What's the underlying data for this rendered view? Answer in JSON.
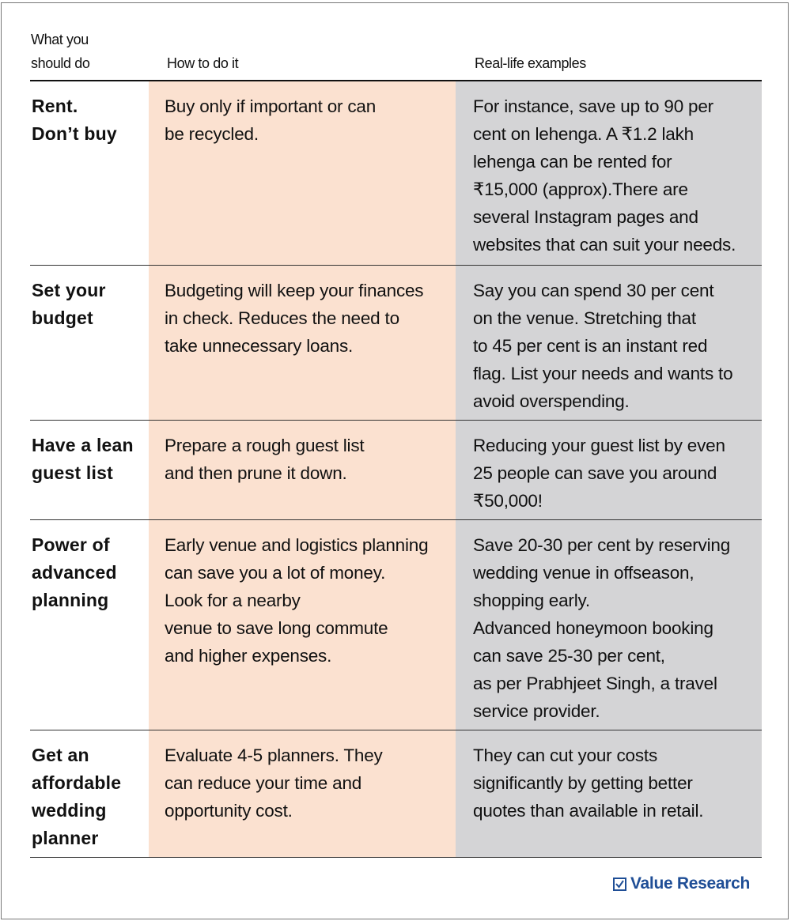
{
  "headers": {
    "col1": "What you\nshould do",
    "col2": "How to do it",
    "col3": "Real-life examples"
  },
  "rows": [
    {
      "what": "Rent.\nDon’t buy",
      "how": "Buy only if important or can\nbe recycled.",
      "example": "For instance, save up to 90 per\ncent on lehenga. A ₹1.2 lakh\nlehenga can be rented for\n₹15,000 (approx).There are\nseveral Instagram pages and\nwebsites that can suit your needs."
    },
    {
      "what": "Set your\nbudget",
      "how": "Budgeting will keep your finances\nin check. Reduces the need to\ntake unnecessary loans.",
      "example": "Say you can spend 30 per cent\non the venue. Stretching that\nto 45 per cent is an instant red\nflag. List your needs and wants to\navoid overspending."
    },
    {
      "what": "Have a lean\nguest list",
      "how": "Prepare a rough guest list\nand then prune it down.",
      "example": "Reducing your guest list by even\n25 people can save you around\n₹50,000!"
    },
    {
      "what": "Power of\nadvanced\nplanning",
      "how": "Early venue and logistics planning\ncan save you a lot of money.\nLook for a nearby\nvenue to save long commute\nand higher expenses.",
      "example": "Save 20-30 per cent by reserving\nwedding venue in offseason,\nshopping early.\nAdvanced honeymoon booking\ncan save 25-30 per cent,\nas per Prabhjeet Singh, a travel\nservice provider."
    },
    {
      "what": "Get an\naffordable\nwedding\nplanner",
      "how": "Evaluate 4-5 planners. They\ncan reduce your time and\nopportunity cost.",
      "example": "They can cut your costs\nsignificantly by getting better\nquotes than available in retail."
    }
  ],
  "logo": {
    "text": "Value Research",
    "icon": "checkbox-icon",
    "color": "#1f4e96"
  },
  "colors": {
    "how_column": "#fbe1d0",
    "example_column": "#d4d4d6"
  }
}
